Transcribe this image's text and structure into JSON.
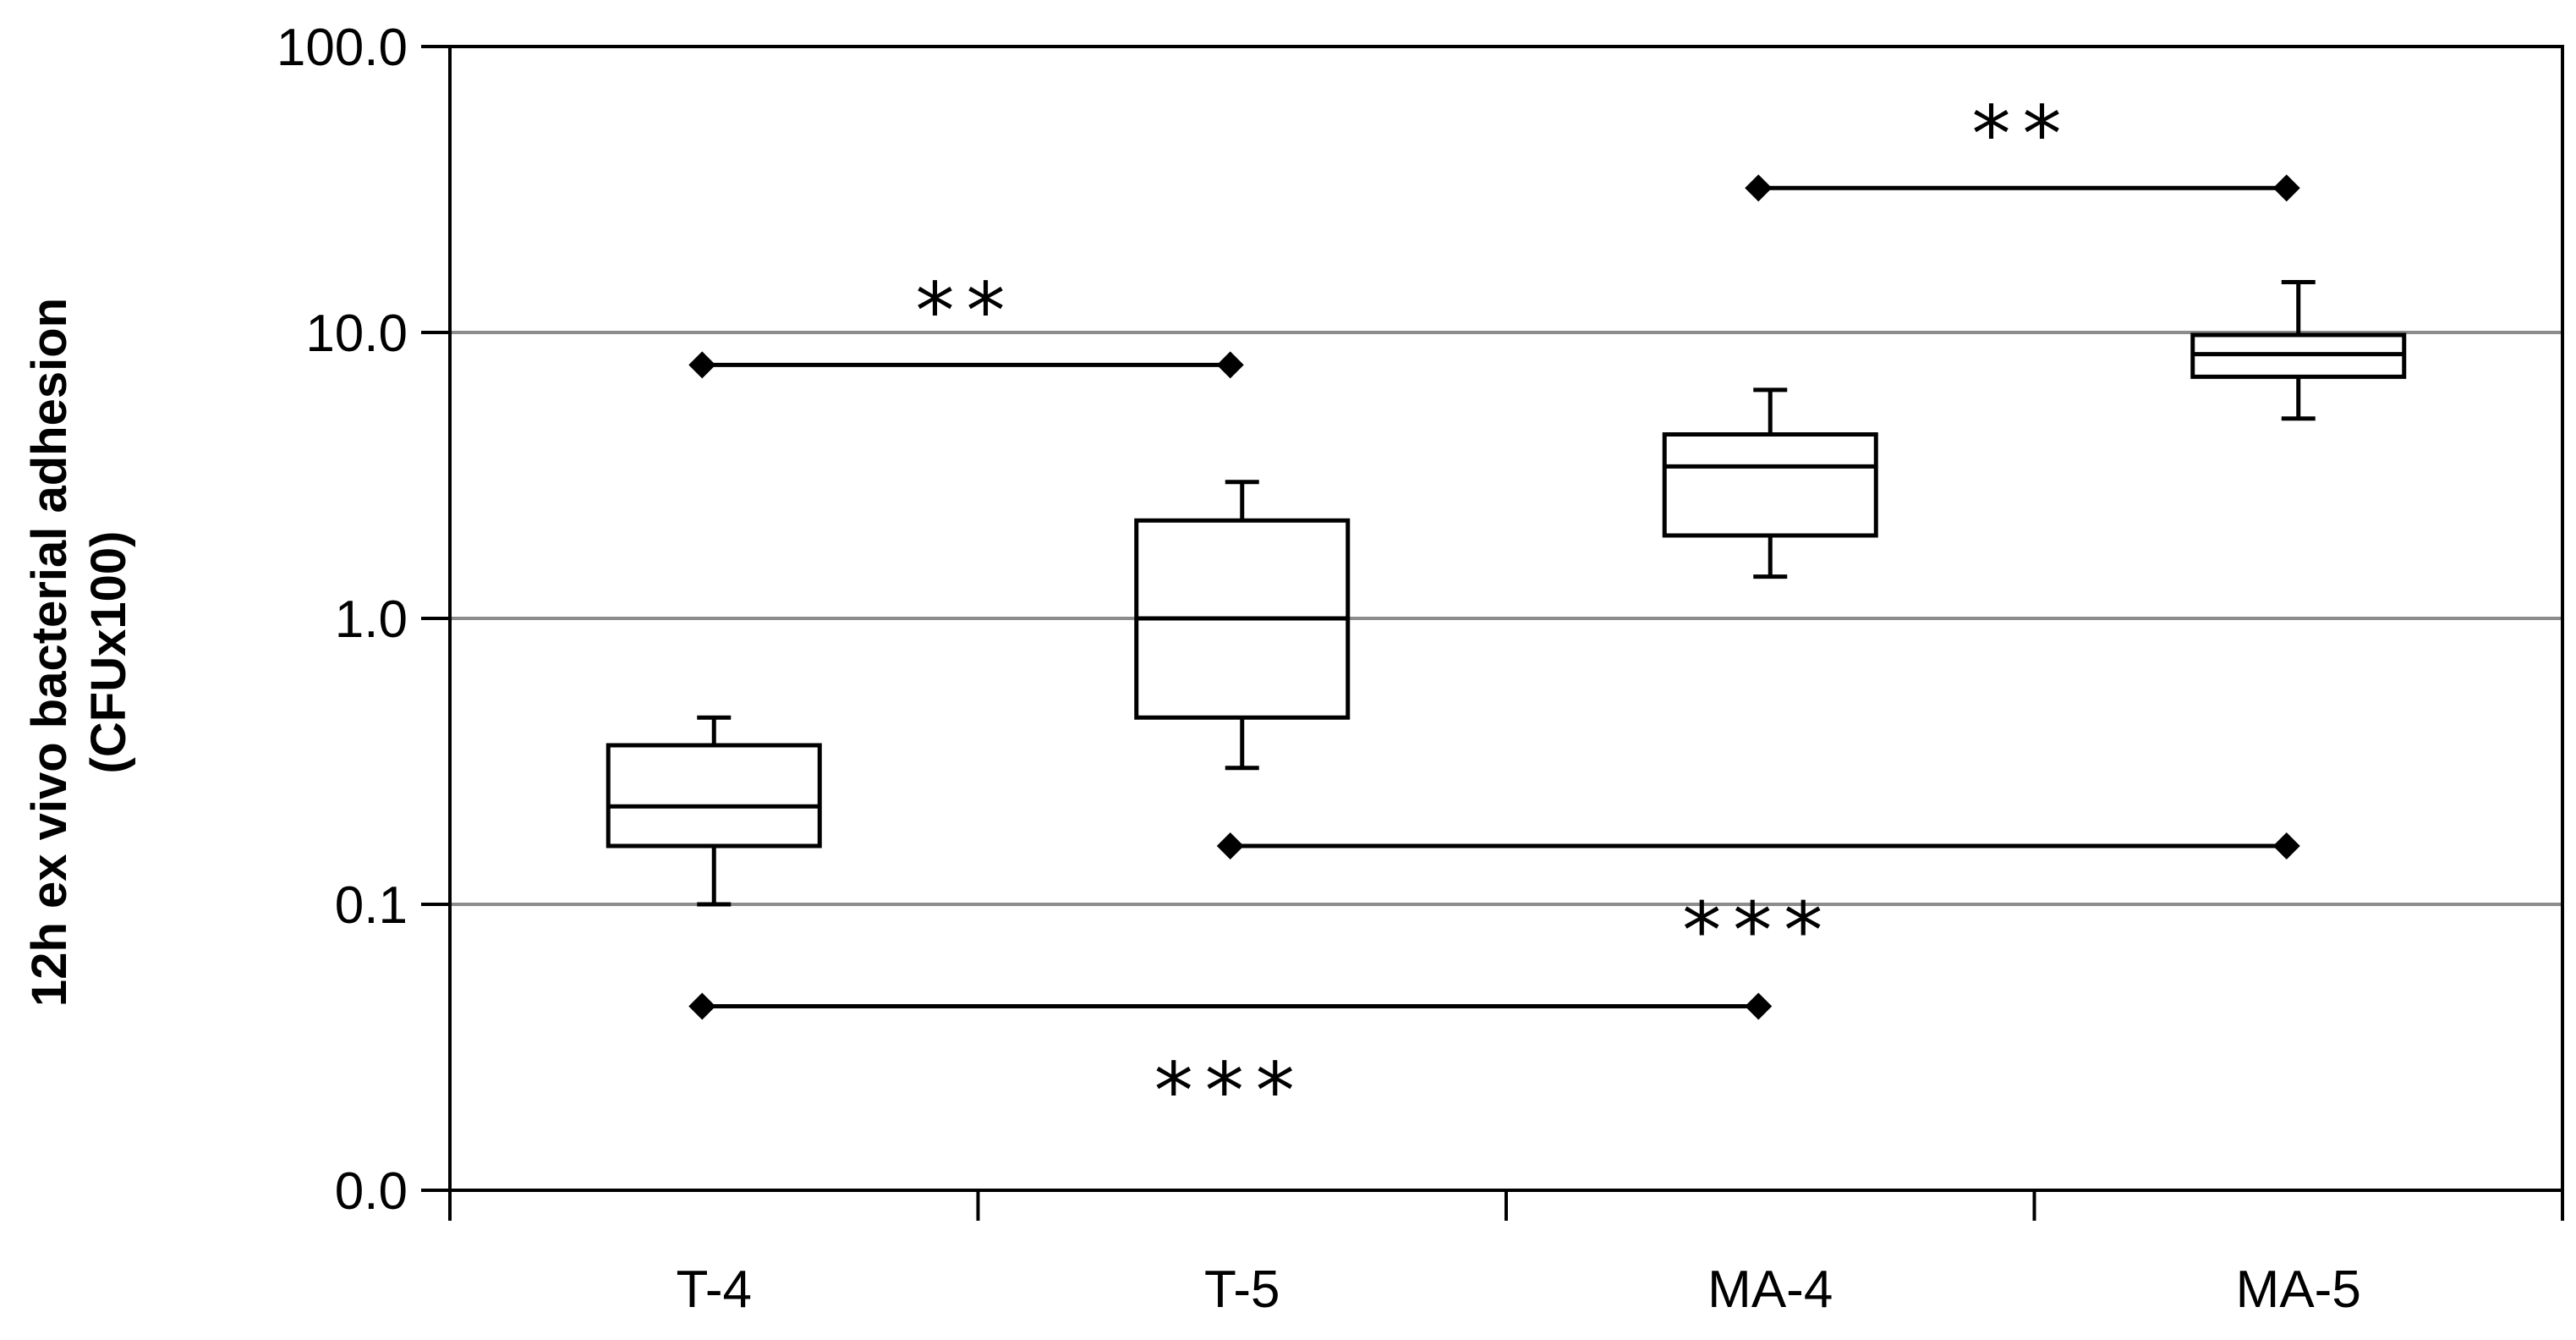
{
  "chart_data": {
    "type": "box",
    "ylabel": [
      "12h ex vivo bacterial adhesion",
      "(CFUx100)"
    ],
    "y_scale": "log",
    "ylim": [
      0.01,
      100
    ],
    "y_ticks": [
      {
        "value": 0.01,
        "label": "0.0"
      },
      {
        "value": 0.1,
        "label": "0.1"
      },
      {
        "value": 1,
        "label": "1.0"
      },
      {
        "value": 10,
        "label": "10.0"
      },
      {
        "value": 100,
        "label": "100.0"
      }
    ],
    "grid": {
      "y": true,
      "x": false
    },
    "categories": [
      "T-4",
      "T-5",
      "MA-4",
      "MA-5"
    ],
    "boxes": [
      {
        "category": "T-4",
        "whisker_low": 0.1,
        "q1": 0.16,
        "median": 0.22,
        "q3": 0.36,
        "whisker_high": 0.45
      },
      {
        "category": "T-5",
        "whisker_low": 0.3,
        "q1": 0.45,
        "median": 1.0,
        "q3": 2.2,
        "whisker_high": 3.0
      },
      {
        "category": "MA-4",
        "whisker_low": 1.4,
        "q1": 1.95,
        "median": 3.4,
        "q3": 4.4,
        "whisker_high": 6.3
      },
      {
        "category": "MA-5",
        "whisker_low": 5.0,
        "q1": 7.0,
        "median": 8.4,
        "q3": 9.8,
        "whisker_high": 15.0
      }
    ],
    "significance": [
      {
        "from": "T-4",
        "to": "T-5",
        "y": 7.7,
        "label": "**",
        "label_position": "above"
      },
      {
        "from": "MA-4",
        "to": "MA-5",
        "y": 32,
        "label": "**",
        "label_position": "above"
      },
      {
        "from": "T-5",
        "to": "MA-5",
        "y": 0.16,
        "label": "***",
        "label_position": "below"
      },
      {
        "from": "T-4",
        "to": "MA-4",
        "y": 0.044,
        "label": "***",
        "label_position": "below"
      }
    ],
    "colors": {
      "box_fill": "#ffffff",
      "stroke": "#000000",
      "grid": "#8c8c8c",
      "marker": "#000000"
    }
  }
}
